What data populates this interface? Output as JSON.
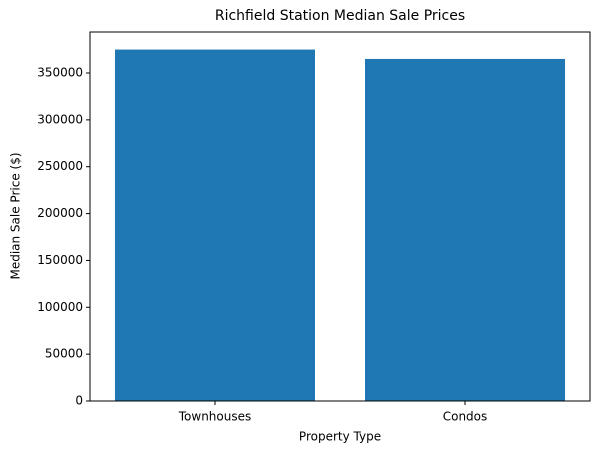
{
  "chart_data": {
    "type": "bar",
    "title": "Richfield Station Median Sale Prices",
    "x_label": "Property Type",
    "y_label": "Median Sale Price ($)",
    "categories": [
      "Townhouses",
      "Condos"
    ],
    "values": [
      375000,
      365000
    ],
    "color": "#1f77b4",
    "ylim": [
      0,
      393750
    ],
    "yticks": [
      0,
      50000,
      100000,
      150000,
      200000,
      250000,
      300000,
      350000
    ],
    "grid": false
  }
}
